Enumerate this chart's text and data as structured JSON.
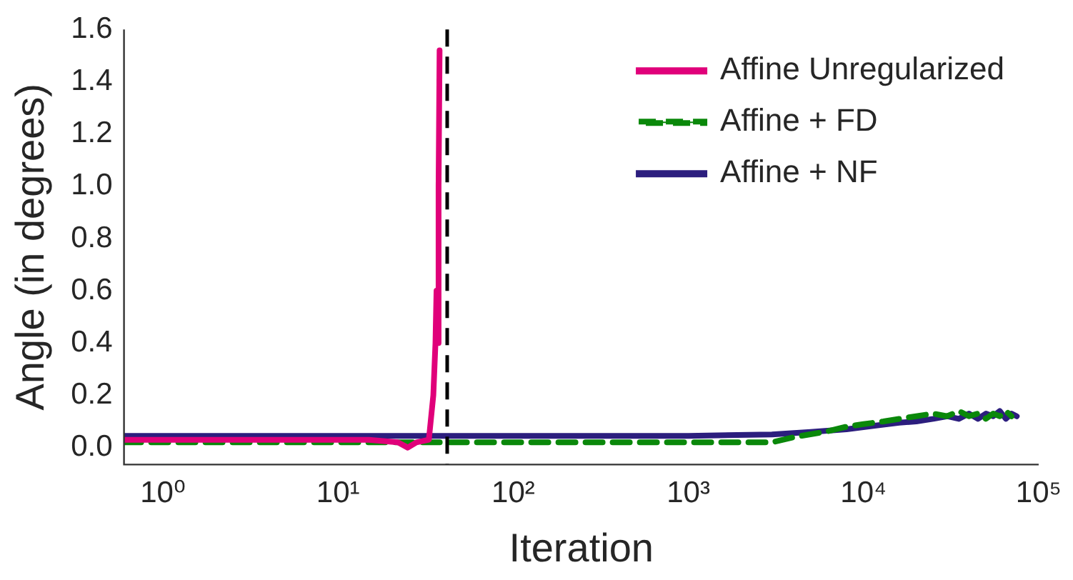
{
  "chart_data": {
    "type": "line",
    "xlabel": "Iteration",
    "ylabel": "Angle (in degrees)",
    "log": "x",
    "xlim": [
      0.6,
      100000
    ],
    "ylim": [
      -0.065,
      1.6
    ],
    "xticks": [
      {
        "value": 1,
        "label": "10⁰"
      },
      {
        "value": 10,
        "label": "10¹"
      },
      {
        "value": 100,
        "label": "10²"
      },
      {
        "value": 1000,
        "label": "10³"
      },
      {
        "value": 10000,
        "label": "10⁴"
      },
      {
        "value": 100000,
        "label": "10⁵"
      }
    ],
    "yticks": [
      {
        "value": 0,
        "label": "0.0"
      },
      {
        "value": 0.2,
        "label": "0.2"
      },
      {
        "value": 0.4,
        "label": "0.4"
      },
      {
        "value": 0.6,
        "label": "0.6"
      },
      {
        "value": 0.8,
        "label": "0.8"
      },
      {
        "value": 1,
        "label": "1.0"
      },
      {
        "value": 1.2,
        "label": "1.2"
      },
      {
        "value": 1.4,
        "label": "1.4"
      },
      {
        "value": 1.6,
        "label": "1.6"
      }
    ],
    "grid": false,
    "legend": "top right",
    "marker": "none",
    "series": [
      {
        "name": "Affine Unregularized",
        "color": "#e0007a",
        "line_style": "solid",
        "x": [
          0.6,
          5,
          15,
          22,
          25,
          28,
          33,
          35,
          36,
          36.5,
          37,
          37.5,
          38
        ],
        "values": [
          0.03,
          0.03,
          0.03,
          0.02,
          0.0,
          0.02,
          0.03,
          0.2,
          0.4,
          0.6,
          0.4,
          1.0,
          1.52
        ]
      },
      {
        "name": "Affine + FD",
        "color": "#0a880a",
        "line_style": "dashed",
        "x": [
          0.6,
          100,
          1000,
          3000,
          4000,
          6000,
          8000,
          10000,
          13000,
          16000,
          20000,
          25000,
          30000,
          35000,
          40000,
          45000,
          50000,
          55000,
          60000,
          65000,
          70000
        ],
        "values": [
          0.02,
          0.02,
          0.02,
          0.02,
          0.04,
          0.06,
          0.08,
          0.09,
          0.1,
          0.11,
          0.12,
          0.13,
          0.12,
          0.14,
          0.12,
          0.13,
          0.11,
          0.13,
          0.12,
          0.14,
          0.12
        ]
      },
      {
        "name": "Affine + NF",
        "color": "#2c1e7e",
        "line_style": "solid",
        "x": [
          0.6,
          100,
          1000,
          3000,
          5000,
          8000,
          12000,
          16000,
          20000,
          25000,
          30000,
          35000,
          40000,
          45000,
          50000,
          55000,
          60000,
          65000,
          70000,
          75000
        ],
        "values": [
          0.045,
          0.045,
          0.045,
          0.05,
          0.06,
          0.07,
          0.085,
          0.095,
          0.1,
          0.11,
          0.12,
          0.11,
          0.13,
          0.11,
          0.13,
          0.12,
          0.14,
          0.11,
          0.13,
          0.12
        ]
      }
    ],
    "ref_lines": [
      {
        "axis": "x",
        "value": 42,
        "color": "#000000",
        "line_style": "dashed"
      }
    ]
  }
}
